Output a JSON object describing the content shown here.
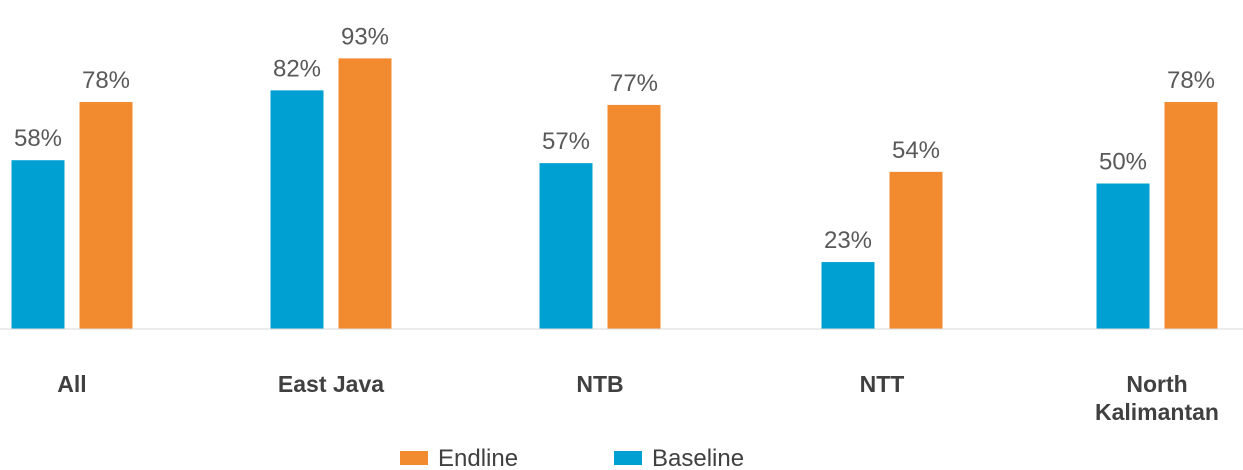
{
  "chart_data": {
    "type": "bar",
    "categories": [
      "All",
      "East Java",
      "NTB",
      "NTT",
      "North Kalimantan"
    ],
    "category_lines": [
      [
        "All"
      ],
      [
        "East Java"
      ],
      [
        "NTB"
      ],
      [
        "NTT"
      ],
      [
        "North",
        "Kalimantan"
      ]
    ],
    "series": [
      {
        "name": "Baseline",
        "values": [
          58,
          82,
          57,
          23,
          50
        ],
        "labels": [
          "58%",
          "82%",
          "57%",
          "23%",
          "50%"
        ],
        "color": "#00A0D2"
      },
      {
        "name": "Endline",
        "values": [
          78,
          93,
          77,
          54,
          78
        ],
        "labels": [
          "78%",
          "93%",
          "77%",
          "54%",
          "78%"
        ],
        "color": "#F28A30"
      }
    ],
    "value_format": "percent",
    "ylim": [
      0,
      100
    ],
    "grid": false,
    "legend": {
      "position": "bottom",
      "order": [
        "Endline",
        "Baseline"
      ]
    },
    "title": "",
    "xlabel": "",
    "ylabel": ""
  }
}
